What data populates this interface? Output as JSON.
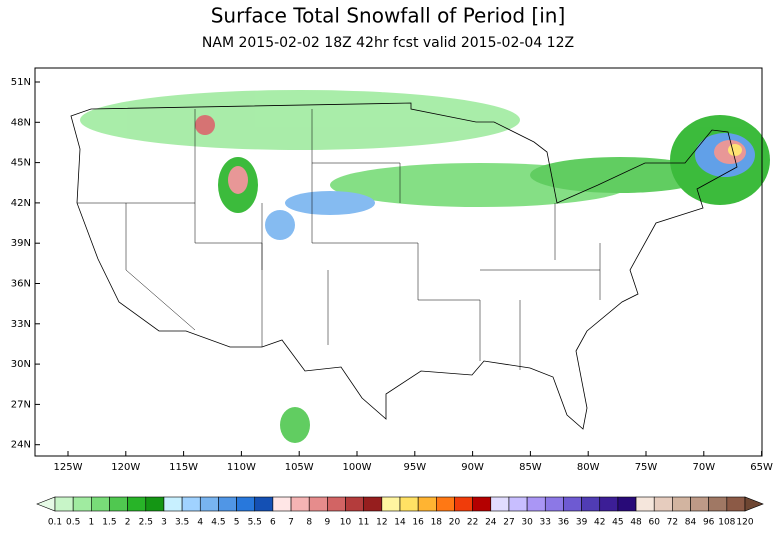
{
  "header": {
    "title": "Surface Total Snowfall of Period [in]",
    "subtitle": "NAM 2015-02-02 18Z 42hr fcst valid 2015-02-04 12Z"
  },
  "map": {
    "lat_labels": [
      "51N",
      "48N",
      "45N",
      "42N",
      "39N",
      "36N",
      "33N",
      "30N",
      "27N",
      "24N"
    ],
    "lon_labels": [
      "125W",
      "120W",
      "115W",
      "110W",
      "105W",
      "100W",
      "95W",
      "90W",
      "85W",
      "80W",
      "75W",
      "70W",
      "65W"
    ]
  },
  "colorbar": {
    "levels": [
      0.1,
      0.5,
      1,
      1.5,
      2,
      2.5,
      3,
      3.5,
      4,
      4.5,
      5,
      5.5,
      6,
      7,
      8,
      9,
      10,
      11,
      12,
      14,
      16,
      18,
      20,
      22,
      24,
      27,
      30,
      33,
      36,
      39,
      42,
      45,
      48,
      60,
      72,
      84,
      96,
      108,
      120
    ],
    "colors": [
      "#e6fae6",
      "#c8f5c8",
      "#a0eba0",
      "#78dc78",
      "#50c850",
      "#28b428",
      "#149614",
      "#c8f0ff",
      "#a0d2ff",
      "#78b4f0",
      "#5096e6",
      "#2878dc",
      "#1450b4",
      "#ffe6e6",
      "#f5b4b4",
      "#e68c8c",
      "#d26464",
      "#b43c3c",
      "#961e1e",
      "#fff5a0",
      "#ffe164",
      "#ffb432",
      "#ff7814",
      "#f03c0a",
      "#b40000",
      "#e1dcff",
      "#c8beff",
      "#aa96f5",
      "#8c78e6",
      "#6e5ad2",
      "#503cb4",
      "#3c1e96",
      "#280a78",
      "#f5e6dc",
      "#e6ccbe",
      "#d2b4a0",
      "#be9a87",
      "#a07864",
      "#8c5a46",
      "#6e4632"
    ]
  }
}
